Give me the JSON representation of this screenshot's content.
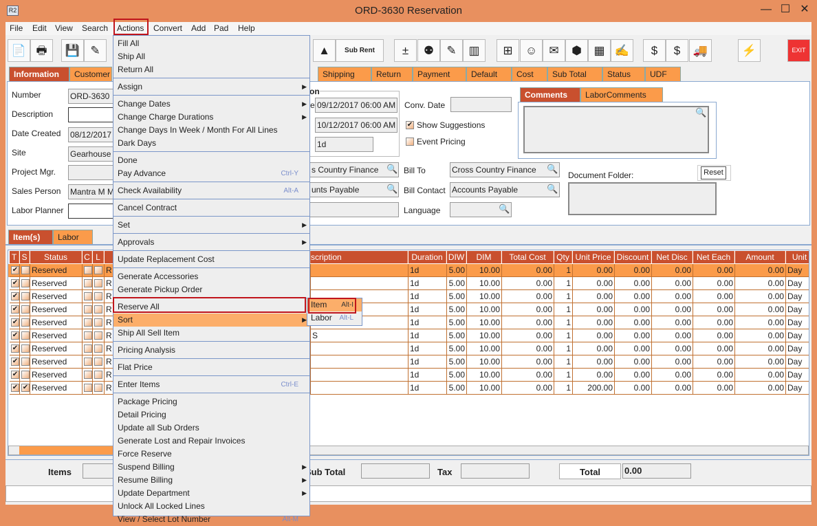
{
  "window": {
    "title": "ORD-3630 Reservation",
    "icon": "R2",
    "minimize": "—",
    "maximize": "☐",
    "close": "✕"
  },
  "menubar": [
    "File",
    "Edit",
    "View",
    "Search",
    "Actions",
    "Convert",
    "Add",
    "Pad",
    "Help"
  ],
  "toolbar": {
    "icons": [
      "new-document-icon",
      "print-icon",
      "save-icon",
      "edit-pencil-icon",
      "shapes-icon",
      "sub-rent-factory-icon",
      "add-remove-icon",
      "group-icon",
      "checklist-icon",
      "disabled-list-icon",
      "hierarchy-icon",
      "smiley-icon",
      "notes-clock-icon",
      "eraser-icon",
      "stacked-bars-icon",
      "form-edit-icon",
      "money-transfer-icon",
      "money-notes-icon",
      "truck-icon",
      "lightning-icon",
      "exit-icon"
    ],
    "sub_rent_label": "Sub Rent",
    "exit_label": "EXIT"
  },
  "tabs": [
    "Information",
    "Customer",
    "Shipping",
    "Return",
    "Payment",
    "Default",
    "Cost",
    "Sub Total",
    "Status",
    "UDF"
  ],
  "form": {
    "number_label": "Number",
    "number": "ORD-3630",
    "description_label": "Description",
    "date_created_label": "Date Created",
    "date_created": "08/12/2017",
    "site_label": "Site",
    "site": "Gearhouse",
    "project_mgr_label": "Project Mgr.",
    "sales_person_label": "Sales Person",
    "sales_person": "Mantra M M",
    "labor_planner_label": "Labor Planner",
    "group_label_fragment": "on",
    "date_label_fragment": "e",
    "start_date": "09/12/2017 06:00 AM",
    "end_date": "10/12/2017 06:00 AM",
    "duration": "1d",
    "customer_fragment": "s Country Finance",
    "contact_fragment": "unts Payable",
    "conv_date_label": "Conv. Date",
    "show_suggestions": {
      "label": "Show Suggestions",
      "checked": true
    },
    "event_pricing": {
      "label": "Event Pricing",
      "checked": false
    },
    "bill_to_label": "Bill To",
    "bill_to": "Cross Country Finance",
    "bill_contact_label": "Bill Contact",
    "bill_contact": "Accounts Payable",
    "language_label": "Language",
    "comment_tabs": [
      "Comments",
      "LaborComments"
    ],
    "document_folder_label": "Document Folder:",
    "reset_label": "Reset"
  },
  "item_tabs": [
    "Item(s)",
    "Labor"
  ],
  "table": {
    "left_columns": [
      "T",
      "S",
      "Status",
      "C",
      "L",
      "A"
    ],
    "description_fragment": "scription",
    "right_columns": [
      "Duration",
      "DIW",
      "DIM",
      "Total Cost",
      "Qty",
      "Unit Price",
      "Discount",
      "Net Disc",
      "Net Each",
      "Amount",
      "Unit"
    ],
    "rows": [
      {
        "t": true,
        "s": false,
        "status": "Reserved",
        "a": "R",
        "desc": "",
        "vals": [
          "1d",
          "5.00",
          "10.00",
          "0.00",
          "1",
          "0.00",
          "0.00",
          "0.00",
          "0.00",
          "0.00",
          "Day"
        ]
      },
      {
        "t": true,
        "s": false,
        "status": "Reserved",
        "a": "R",
        "desc": "",
        "vals": [
          "1d",
          "5.00",
          "10.00",
          "0.00",
          "1",
          "0.00",
          "0.00",
          "0.00",
          "0.00",
          "0.00",
          "Day"
        ]
      },
      {
        "t": true,
        "s": false,
        "status": "Reserved",
        "a": "R",
        "desc": "",
        "vals": [
          "1d",
          "5.00",
          "10.00",
          "0.00",
          "1",
          "0.00",
          "0.00",
          "0.00",
          "0.00",
          "0.00",
          "Day"
        ]
      },
      {
        "t": true,
        "s": false,
        "status": "Reserved",
        "a": "R",
        "desc": "",
        "vals": [
          "1d",
          "5.00",
          "10.00",
          "0.00",
          "1",
          "0.00",
          "0.00",
          "0.00",
          "0.00",
          "0.00",
          "Day"
        ]
      },
      {
        "t": true,
        "s": false,
        "status": "Reserved",
        "a": "R",
        "desc": "",
        "vals": [
          "1d",
          "5.00",
          "10.00",
          "0.00",
          "1",
          "0.00",
          "0.00",
          "0.00",
          "0.00",
          "0.00",
          "Day"
        ]
      },
      {
        "t": true,
        "s": false,
        "status": "Reserved",
        "a": "R",
        "desc": "S",
        "vals": [
          "1d",
          "5.00",
          "10.00",
          "0.00",
          "1",
          "0.00",
          "0.00",
          "0.00",
          "0.00",
          "0.00",
          "Day"
        ]
      },
      {
        "t": true,
        "s": false,
        "status": "Reserved",
        "a": "R",
        "desc": "",
        "vals": [
          "1d",
          "5.00",
          "10.00",
          "0.00",
          "1",
          "0.00",
          "0.00",
          "0.00",
          "0.00",
          "0.00",
          "Day"
        ]
      },
      {
        "t": true,
        "s": false,
        "status": "Reserved",
        "a": "R",
        "desc": "",
        "vals": [
          "1d",
          "5.00",
          "10.00",
          "0.00",
          "1",
          "0.00",
          "0.00",
          "0.00",
          "0.00",
          "0.00",
          "Day"
        ]
      },
      {
        "t": true,
        "s": false,
        "status": "Reserved",
        "a": "R",
        "desc": "",
        "vals": [
          "1d",
          "5.00",
          "10.00",
          "0.00",
          "1",
          "0.00",
          "0.00",
          "0.00",
          "0.00",
          "0.00",
          "Day"
        ]
      },
      {
        "t": true,
        "s": true,
        "status": "Reserved",
        "a": "R",
        "desc": "",
        "vals": [
          "1d",
          "5.00",
          "10.00",
          "0.00",
          "1",
          "200.00",
          "0.00",
          "0.00",
          "0.00",
          "0.00",
          "Day"
        ]
      }
    ]
  },
  "totals": {
    "items_label": "Items",
    "sub_total_label": "Sub Total",
    "tax_label": "Tax",
    "total_label": "Total",
    "total": "0.00"
  },
  "actions_menu": [
    {
      "label": "Fill All"
    },
    {
      "label": "Ship All"
    },
    {
      "label": "Return All"
    },
    {
      "sep": true
    },
    {
      "label": "Assign",
      "sub": true
    },
    {
      "sep": true
    },
    {
      "label": "Change Dates",
      "sub": true
    },
    {
      "label": "Change Charge Durations",
      "sub": true
    },
    {
      "label": "Change Days In Week / Month For All Lines"
    },
    {
      "label": "Dark Days"
    },
    {
      "sep": true
    },
    {
      "label": "Done"
    },
    {
      "label": "Pay Advance",
      "shortcut": "Ctrl-Y"
    },
    {
      "sep": true
    },
    {
      "label": "Check Availability",
      "shortcut": "Alt-A"
    },
    {
      "sep": true
    },
    {
      "label": "Cancel Contract"
    },
    {
      "sep": true
    },
    {
      "label": "Set",
      "sub": true
    },
    {
      "sep": true
    },
    {
      "label": "Approvals",
      "sub": true
    },
    {
      "sep": true
    },
    {
      "label": "Update Replacement Cost"
    },
    {
      "sep": true
    },
    {
      "label": "Generate Accessories"
    },
    {
      "label": "Generate Pickup Order"
    },
    {
      "sep": true
    },
    {
      "label": "Reserve All"
    },
    {
      "label": "Sort",
      "sub": true,
      "highlighted": true
    },
    {
      "label": "Ship All Sell Item"
    },
    {
      "sep": true
    },
    {
      "label": "Pricing Analysis"
    },
    {
      "sep": true
    },
    {
      "label": "Flat Price"
    },
    {
      "sep": true
    },
    {
      "label": "Enter Items",
      "shortcut": "Ctrl-E"
    },
    {
      "sep": true
    },
    {
      "label": "Package Pricing"
    },
    {
      "label": "Detail Pricing"
    },
    {
      "label": "Update all Sub Orders"
    },
    {
      "label": "Generate Lost and Repair Invoices"
    },
    {
      "label": "Force Reserve"
    },
    {
      "label": "Suspend Billing",
      "sub": true
    },
    {
      "label": "Resume Billing",
      "sub": true
    },
    {
      "label": "Update Department",
      "sub": true
    },
    {
      "label": "Unlock All Locked Lines"
    },
    {
      "label": "View / Select Lot Number",
      "shortcut": "Alt-M"
    }
  ],
  "sort_submenu": [
    {
      "label": "Item",
      "shortcut": "Alt-I",
      "highlighted": true
    },
    {
      "label": "Labor",
      "shortcut": "Alt-L"
    }
  ],
  "colors": {
    "accent": "#FB9B4A",
    "header": "#C9502E",
    "highlight_box": "#C0141B",
    "window": "#E8905F"
  }
}
